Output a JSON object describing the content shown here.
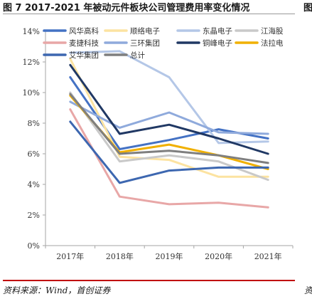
{
  "header": {
    "title": "图 7 2017-2021 年被动元件板块公司管理费用率变化情况",
    "right_clip": "图"
  },
  "footer": {
    "source": "资料来源：Wind，首创证券",
    "right_clip": "资"
  },
  "chart_data": {
    "type": "line",
    "title": "",
    "xlabel": "",
    "ylabel": "",
    "categories": [
      "2017年",
      "2018年",
      "2019年",
      "2020年",
      "2021年"
    ],
    "ylim": [
      0,
      14
    ],
    "yticks": [
      "0%",
      "2%",
      "4%",
      "6%",
      "8%",
      "10%",
      "12%",
      "14%"
    ],
    "grid": false,
    "legend_position": "top",
    "series": [
      {
        "name": "风华高科",
        "color": "#4472c4",
        "values": [
          11.0,
          6.3,
          6.9,
          7.6,
          7.0
        ]
      },
      {
        "name": "顺络电子",
        "color": "#fce3a1",
        "values": [
          12.2,
          5.8,
          5.6,
          4.5,
          4.5
        ]
      },
      {
        "name": "东晶电子",
        "color": "#b4c7e7",
        "values": [
          12.6,
          12.7,
          11.0,
          6.7,
          6.8
        ]
      },
      {
        "name": "江海股",
        "color": "#c9c9c9",
        "values": [
          10.0,
          5.5,
          5.9,
          5.5,
          4.3
        ]
      },
      {
        "name": "麦捷科技",
        "color": "#e8a7a7",
        "values": [
          8.9,
          3.2,
          2.7,
          2.8,
          2.5
        ]
      },
      {
        "name": "三环集团",
        "color": "#8faadc",
        "values": [
          9.4,
          7.7,
          8.7,
          7.4,
          7.3
        ]
      },
      {
        "name": "铜峰电子",
        "color": "#203864",
        "values": [
          11.8,
          7.3,
          7.9,
          7.0,
          6.0
        ]
      },
      {
        "name": "法拉电",
        "color": "#f0b000",
        "values": [
          9.8,
          6.1,
          6.6,
          5.9,
          5.0
        ]
      },
      {
        "name": "艾华集团",
        "color": "#3d67b0",
        "values": [
          8.1,
          4.1,
          4.9,
          5.1,
          5.1
        ]
      },
      {
        "name": "总计",
        "color": "#7f7f7f",
        "values": [
          9.9,
          6.0,
          6.2,
          5.9,
          5.4
        ]
      }
    ]
  }
}
